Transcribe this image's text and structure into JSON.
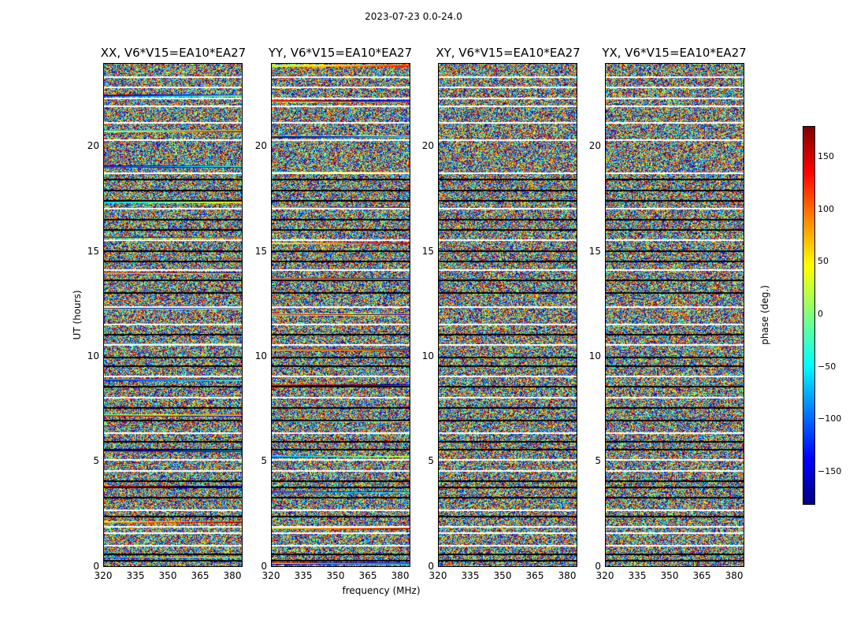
{
  "chart_data": {
    "type": "heatmap",
    "suptitle": "2023-07-23 0.0-24.0",
    "panels": [
      {
        "title": "XX, V6*V15=EA10*EA27",
        "seed": 11
      },
      {
        "title": "YY, V6*V15=EA10*EA27",
        "seed": 23
      },
      {
        "title": "XY, V6*V15=EA10*EA27",
        "seed": 37
      },
      {
        "title": "YX, V6*V15=EA10*EA27",
        "seed": 53
      }
    ],
    "xlabel": "frequency (MHz)",
    "ylabel": "UT (hours)",
    "xlim": [
      320,
      385
    ],
    "ylim": [
      0,
      24
    ],
    "xticks": [
      "320",
      "335",
      "350",
      "365",
      "380"
    ],
    "yticks": [
      "0",
      "5",
      "10",
      "15",
      "20"
    ],
    "xtick_values": [
      320,
      335,
      350,
      365,
      380
    ],
    "ytick_values": [
      0,
      5,
      10,
      15,
      20
    ],
    "colorbar": {
      "label": "phase (deg.)",
      "range": [
        -180,
        180
      ],
      "ticks": [
        "150",
        "100",
        "50",
        "0",
        "−50",
        "−100",
        "−150"
      ],
      "tick_values": [
        150,
        100,
        50,
        0,
        -50,
        -100,
        -150
      ],
      "colormap": "jet"
    },
    "flagged_rows_ut": [
      {
        "ut": 0.3,
        "kind": "black"
      },
      {
        "ut": 0.6,
        "kind": "black"
      },
      {
        "ut": 1.0,
        "kind": "white"
      },
      {
        "ut": 1.6,
        "kind": "white"
      },
      {
        "ut": 1.9,
        "kind": "white"
      },
      {
        "ut": 2.4,
        "kind": "black"
      },
      {
        "ut": 2.7,
        "kind": "white"
      },
      {
        "ut": 3.3,
        "kind": "black"
      },
      {
        "ut": 3.8,
        "kind": "black"
      },
      {
        "ut": 4.1,
        "kind": "black"
      },
      {
        "ut": 4.6,
        "kind": "white"
      },
      {
        "ut": 5.1,
        "kind": "white"
      },
      {
        "ut": 5.6,
        "kind": "black"
      },
      {
        "ut": 6.0,
        "kind": "black"
      },
      {
        "ut": 6.4,
        "kind": "white"
      },
      {
        "ut": 7.0,
        "kind": "black"
      },
      {
        "ut": 7.6,
        "kind": "black"
      },
      {
        "ut": 8.1,
        "kind": "white"
      },
      {
        "ut": 8.6,
        "kind": "black"
      },
      {
        "ut": 9.1,
        "kind": "white"
      },
      {
        "ut": 9.6,
        "kind": "black"
      },
      {
        "ut": 10.0,
        "kind": "black"
      },
      {
        "ut": 10.6,
        "kind": "white"
      },
      {
        "ut": 11.1,
        "kind": "black"
      },
      {
        "ut": 11.6,
        "kind": "white"
      },
      {
        "ut": 12.4,
        "kind": "white"
      },
      {
        "ut": 13.1,
        "kind": "black"
      },
      {
        "ut": 13.7,
        "kind": "black"
      },
      {
        "ut": 14.2,
        "kind": "white"
      },
      {
        "ut": 14.6,
        "kind": "black"
      },
      {
        "ut": 15.1,
        "kind": "black"
      },
      {
        "ut": 15.6,
        "kind": "white"
      },
      {
        "ut": 16.1,
        "kind": "black"
      },
      {
        "ut": 16.6,
        "kind": "black"
      },
      {
        "ut": 17.1,
        "kind": "white"
      },
      {
        "ut": 17.5,
        "kind": "black"
      },
      {
        "ut": 18.0,
        "kind": "black"
      },
      {
        "ut": 18.5,
        "kind": "black"
      },
      {
        "ut": 18.8,
        "kind": "white"
      },
      {
        "ut": 20.4,
        "kind": "white"
      },
      {
        "ut": 21.2,
        "kind": "white"
      },
      {
        "ut": 22.0,
        "kind": "white"
      },
      {
        "ut": 22.4,
        "kind": "white"
      },
      {
        "ut": 22.9,
        "kind": "white"
      },
      {
        "ut": 23.4,
        "kind": "white"
      }
    ]
  }
}
